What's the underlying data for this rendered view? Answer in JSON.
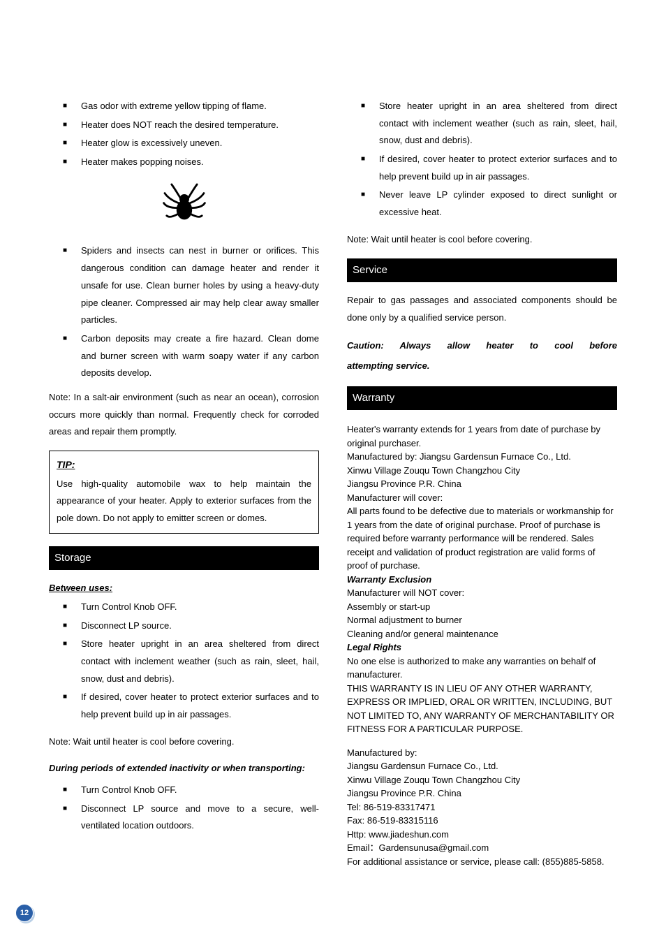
{
  "colors": {
    "text": "#000000",
    "background": "#ffffff",
    "section_header_bg": "#000000",
    "section_header_fg": "#ffffff",
    "page_num_fill": "#2a5fa8",
    "page_num_shadow": "#b9cfe6"
  },
  "typography": {
    "body_font": "Arial",
    "body_size_pt": 10,
    "header_size_pt": 11
  },
  "page_number": "12",
  "left": {
    "symptoms": [
      "Gas odor with extreme yellow tipping of flame.",
      "Heater does NOT reach the desired temperature.",
      "Heater glow is excessively uneven.",
      "Heater makes popping noises."
    ],
    "spider_items": [
      "Spiders and insects can nest in burner or orifices. This dangerous condition can damage heater and render it unsafe for use. Clean burner holes by using a heavy-duty pipe cleaner. Compressed air may help clear away smaller particles.",
      "Carbon deposits may create a fire hazard. Clean dome and burner screen with warm soapy water if any carbon deposits develop."
    ],
    "salt_note": "Note: In a salt-air environment (such as near an ocean), corrosion occurs more quickly than normal. Frequently check for corroded areas and repair them promptly.",
    "tip_label": "TIP:",
    "tip_body": "Use high-quality automobile wax to help maintain the appearance of your heater. Apply to exterior surfaces from the pole down. Do not apply to emitter screen or domes.",
    "storage_header": "Storage",
    "between_hdr": "Between uses:",
    "between_items": [
      "Turn Control Knob OFF.",
      "Disconnect LP source.",
      "Store heater upright in an area sheltered from direct contact with inclement weather (such as rain, sleet, hail, snow, dust and debris).",
      "If desired, cover heater to protect exterior surfaces and to help prevent build up in air passages."
    ],
    "wait_note": "Note: Wait until heater is cool before covering.",
    "extended_hdr": "During periods of extended inactivity or when transporting:",
    "extended_items": [
      "Turn Control Knob OFF.",
      "Disconnect LP source and move to a secure, well-ventilated location outdoors."
    ]
  },
  "right": {
    "cont_items": [
      "Store heater upright in an area sheltered from direct contact with inclement weather (such as rain, sleet, hail, snow, dust and debris).",
      "If desired, cover heater to protect exterior surfaces and to help prevent build up in air passages.",
      "Never leave LP cylinder exposed to direct sunlight or excessive heat."
    ],
    "wait_note": "Note: Wait until heater is cool before covering.",
    "service_header": "Service",
    "service_body": "Repair to gas passages and associated components should be done only by a qualified service person.",
    "caution_line1": "Caution: Always allow heater to cool before",
    "caution_line2": "attempting service.",
    "warranty_header": "Warranty",
    "warranty_lines": [
      {
        "t": "Heater's warranty extends for 1 years from date of purchase by original purchaser."
      },
      {
        "t": "Manufactured by: Jiangsu Gardensun Furnace Co., Ltd."
      },
      {
        "t": "Xinwu Village Zouqu Town Changzhou City"
      },
      {
        "t": "Jiangsu Province P.R. China"
      },
      {
        "t": "Manufacturer will cover:"
      },
      {
        "t": "All parts found to be defective due to materials or workmanship for 1 years from the date of original purchase. Proof of purchase is required before warranty performance will be rendered.  Sales receipt and validation of product registration are valid forms of proof  of purchase."
      },
      {
        "t": "Warranty Exclusion",
        "bi": true
      },
      {
        "t": "Manufacturer will NOT cover:"
      },
      {
        "t": "Assembly or start-up"
      },
      {
        "t": "Normal adjustment to burner"
      },
      {
        "t": "Cleaning and/or general maintenance"
      },
      {
        "t": "Legal Rights",
        "bi": true
      },
      {
        "t": "No one else is authorized to make any warranties on behalf of manufacturer."
      },
      {
        "t": "THIS WARRANTY IS IN LIEU OF ANY OTHER WARRANTY, EXPRESS OR IMPLIED, ORAL OR WRITTEN, INCLUDING, BUT NOT LIMITED TO, ANY WARRANTY OF MERCHANTABILITY OR FITNESS FOR A PARTICULAR PURPOSE."
      }
    ],
    "contact_lines": [
      "Manufactured by:",
      "Jiangsu Gardensun Furnace Co., Ltd.",
      "Xinwu Village Zouqu Town Changzhou City",
      "Jiangsu Province P.R. China",
      "Tel: 86-519-83317471",
      "Fax: 86-519-83315116",
      "Http: www.jiadeshun.com",
      "Email：Gardensunusa@gmail.com",
      "For additional assistance or service, please call: (855)885-5858."
    ]
  }
}
